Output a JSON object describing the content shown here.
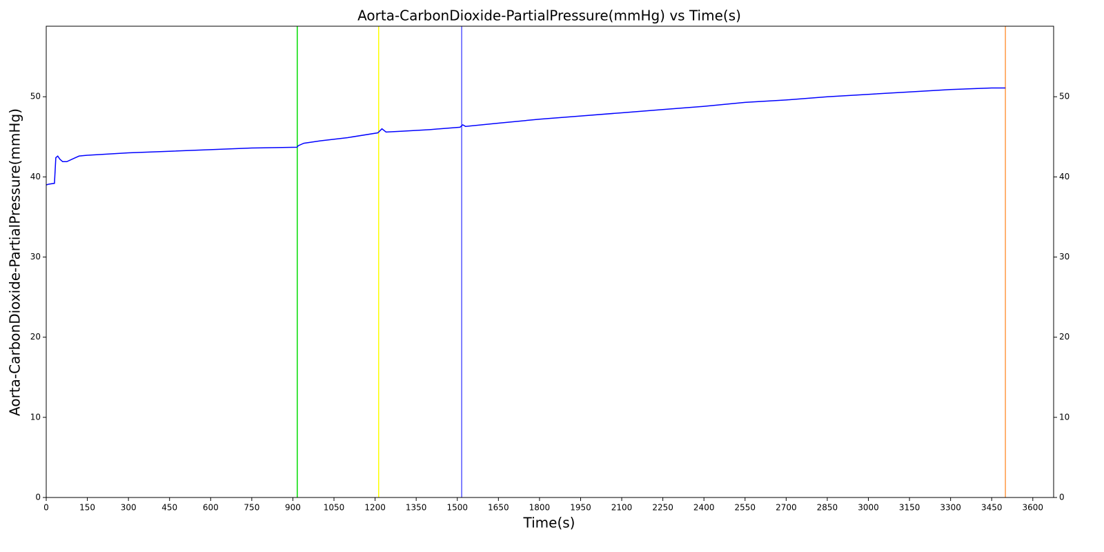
{
  "chart_data": {
    "type": "line",
    "title": "Aorta-CarbonDioxide-PartialPressure(mmHg) vs Time(s)",
    "x_label": "Time(s)",
    "y_label": "Aorta-CarbonDioxide-PartialPressure(mmHg)",
    "x": [
      0,
      10,
      30,
      35,
      42,
      50,
      60,
      75,
      100,
      120,
      150,
      300,
      450,
      600,
      750,
      915,
      920,
      940,
      1000,
      1100,
      1210,
      1225,
      1240,
      1300,
      1400,
      1510,
      1520,
      1530,
      1650,
      1800,
      1950,
      2100,
      2250,
      2400,
      2550,
      2700,
      2850,
      3000,
      3150,
      3300,
      3450,
      3500
    ],
    "series": [
      {
        "color": "#0000ff",
        "values": [
          39.0,
          39.1,
          39.2,
          42.4,
          42.6,
          42.2,
          41.9,
          41.9,
          42.3,
          42.6,
          42.7,
          43.0,
          43.2,
          43.4,
          43.6,
          43.7,
          43.9,
          44.2,
          44.5,
          44.9,
          45.5,
          46.0,
          45.6,
          45.7,
          45.9,
          46.2,
          46.5,
          46.3,
          46.7,
          47.2,
          47.6,
          48.0,
          48.4,
          48.8,
          49.3,
          49.6,
          50.0,
          50.3,
          50.6,
          50.9,
          51.1,
          51.1
        ]
      }
    ],
    "vlines": [
      {
        "x": 916,
        "color": "#00dd00"
      },
      {
        "x": 1213,
        "color": "#ffff00"
      },
      {
        "x": 1516,
        "color": "#5555ff"
      },
      {
        "x": 3500,
        "color": "#ff9944"
      }
    ],
    "xlim": [
      0,
      3676
    ],
    "ylim": [
      0,
      58.8
    ],
    "y2lim": [
      0,
      58.8
    ],
    "xticks": [
      0,
      150,
      300,
      450,
      600,
      750,
      900,
      1050,
      1200,
      1350,
      1500,
      1650,
      1800,
      1950,
      2100,
      2250,
      2400,
      2550,
      2700,
      2850,
      3000,
      3150,
      3300,
      3450,
      3600
    ],
    "yticks": [
      0,
      10,
      20,
      30,
      40,
      50
    ],
    "y2ticks": [
      0,
      10,
      20,
      30,
      40,
      50
    ],
    "grid": false
  }
}
